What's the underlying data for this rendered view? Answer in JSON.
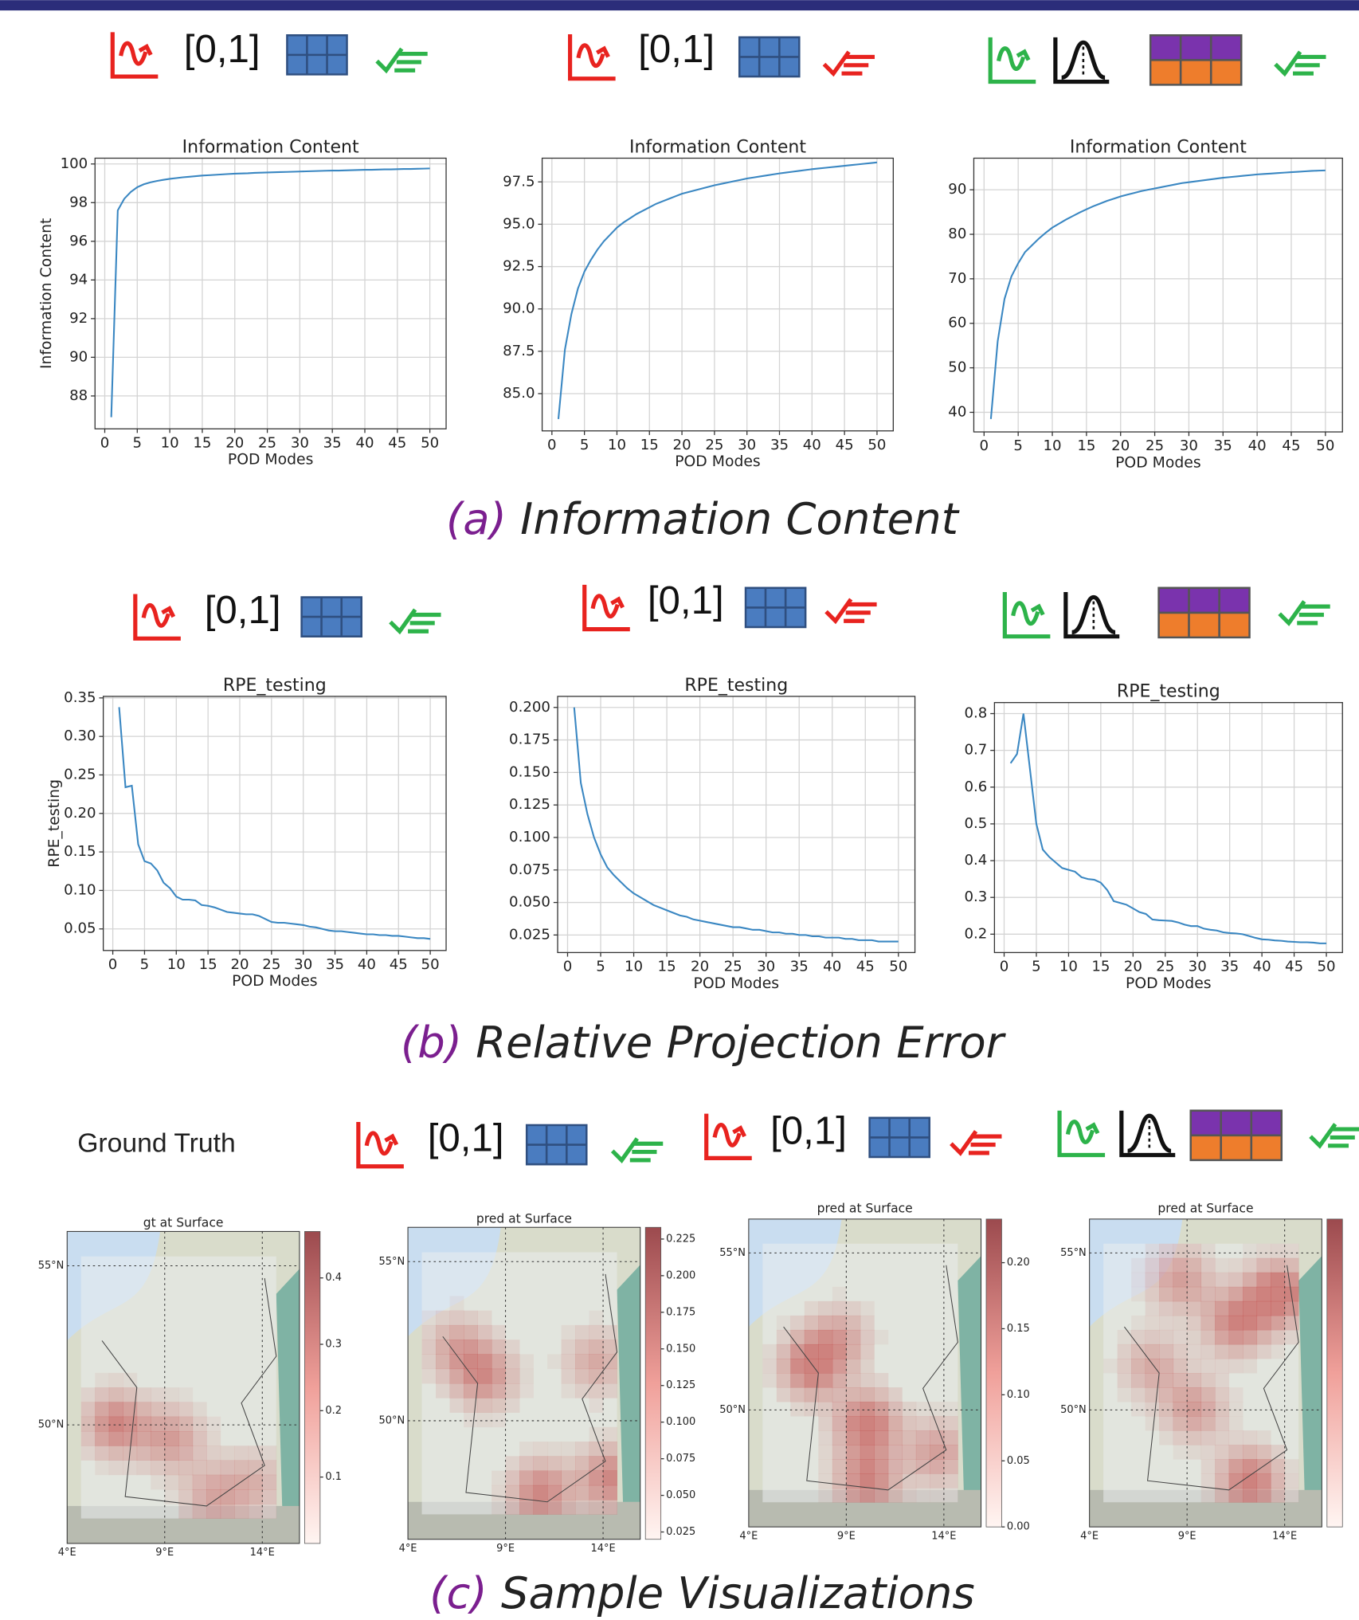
{
  "icon_labels": [
    "[0,1]",
    "[0,1]",
    "[0,1]",
    "[0,1]",
    "[0,1]",
    "[0,1]"
  ],
  "captions": [
    {
      "label": "(a)",
      "text": "Information Content"
    },
    {
      "label": "(b)",
      "text": "Relative Projection Error"
    },
    {
      "label": "(c)",
      "text": "Sample Visualizations"
    }
  ],
  "ground_truth_label": "Ground Truth",
  "chart_data": [
    {
      "type": "line",
      "title": "Information Content",
      "xlabel": "POD Modes",
      "ylabel": "Information Content",
      "grid": true,
      "color": "#3a87c2",
      "x": [
        1,
        2,
        3,
        4,
        5,
        6,
        7,
        8,
        9,
        10,
        11,
        12,
        13,
        14,
        15,
        16,
        17,
        18,
        19,
        20,
        21,
        22,
        23,
        24,
        25,
        26,
        27,
        28,
        29,
        30,
        31,
        32,
        33,
        34,
        35,
        36,
        37,
        38,
        39,
        40,
        41,
        42,
        43,
        44,
        45,
        46,
        47,
        48,
        49,
        50
      ],
      "values": [
        86.9,
        97.6,
        98.2,
        98.55,
        98.8,
        98.95,
        99.05,
        99.12,
        99.18,
        99.23,
        99.27,
        99.31,
        99.34,
        99.37,
        99.4,
        99.42,
        99.44,
        99.46,
        99.48,
        99.5,
        99.51,
        99.52,
        99.54,
        99.55,
        99.56,
        99.57,
        99.58,
        99.59,
        99.6,
        99.61,
        99.62,
        99.63,
        99.64,
        99.65,
        99.66,
        99.66,
        99.67,
        99.68,
        99.69,
        99.7,
        99.7,
        99.71,
        99.72,
        99.72,
        99.73,
        99.74,
        99.74,
        99.75,
        99.76,
        99.77
      ],
      "xlim": [
        -1.5,
        52.5
      ],
      "xticks": [
        0,
        5,
        10,
        15,
        20,
        25,
        30,
        35,
        40,
        45,
        50
      ],
      "ylim": [
        86.3,
        100.3
      ],
      "yticks": [
        88,
        90,
        92,
        94,
        96,
        98,
        100
      ]
    },
    {
      "type": "line",
      "title": "Information Content",
      "xlabel": "POD Modes",
      "grid": true,
      "color": "#3a87c2",
      "x": [
        1,
        2,
        3,
        4,
        5,
        6,
        7,
        8,
        9,
        10,
        11,
        12,
        13,
        14,
        15,
        16,
        17,
        18,
        19,
        20,
        21,
        22,
        23,
        24,
        25,
        26,
        27,
        28,
        29,
        30,
        31,
        32,
        33,
        34,
        35,
        36,
        37,
        38,
        39,
        40,
        41,
        42,
        43,
        44,
        45,
        46,
        47,
        48,
        49,
        50
      ],
      "values": [
        83.5,
        87.6,
        89.7,
        91.2,
        92.2,
        92.9,
        93.5,
        94.0,
        94.4,
        94.8,
        95.1,
        95.35,
        95.6,
        95.8,
        96.0,
        96.2,
        96.35,
        96.5,
        96.65,
        96.8,
        96.9,
        97.0,
        97.1,
        97.2,
        97.3,
        97.38,
        97.46,
        97.54,
        97.62,
        97.7,
        97.76,
        97.82,
        97.88,
        97.94,
        98.0,
        98.05,
        98.1,
        98.15,
        98.2,
        98.25,
        98.29,
        98.33,
        98.37,
        98.41,
        98.45,
        98.49,
        98.53,
        98.57,
        98.61,
        98.65
      ],
      "xlim": [
        -1.5,
        52.5
      ],
      "xticks": [
        0,
        5,
        10,
        15,
        20,
        25,
        30,
        35,
        40,
        45,
        50
      ],
      "ylim": [
        82.8,
        98.9
      ],
      "yticks": [
        {
          "value": 85,
          "label": "85.0"
        },
        {
          "value": 87.5,
          "label": "87.5"
        },
        {
          "value": 90,
          "label": "90.0"
        },
        {
          "value": 92.5,
          "label": "92.5"
        },
        {
          "value": 95,
          "label": "95.0"
        },
        {
          "value": 97.5,
          "label": "97.5"
        }
      ]
    },
    {
      "type": "line",
      "title": "Information Content",
      "xlabel": "POD Modes",
      "grid": true,
      "color": "#3a87c2",
      "x": [
        1,
        2,
        3,
        4,
        5,
        6,
        7,
        8,
        9,
        10,
        11,
        12,
        13,
        14,
        15,
        16,
        17,
        18,
        19,
        20,
        21,
        22,
        23,
        24,
        25,
        26,
        27,
        28,
        29,
        30,
        31,
        32,
        33,
        34,
        35,
        36,
        37,
        38,
        39,
        40,
        41,
        42,
        43,
        44,
        45,
        46,
        47,
        48,
        49,
        50
      ],
      "values": [
        38.5,
        56,
        65.5,
        70.5,
        73.5,
        76,
        77.5,
        79,
        80.3,
        81.5,
        82.4,
        83.3,
        84.1,
        84.9,
        85.6,
        86.3,
        86.9,
        87.5,
        88.0,
        88.5,
        88.9,
        89.3,
        89.7,
        90.0,
        90.3,
        90.6,
        90.9,
        91.2,
        91.5,
        91.7,
        91.9,
        92.1,
        92.3,
        92.5,
        92.7,
        92.85,
        93.0,
        93.15,
        93.3,
        93.45,
        93.55,
        93.65,
        93.75,
        93.85,
        93.95,
        94.05,
        94.15,
        94.25,
        94.3,
        94.35
      ],
      "xlim": [
        -1.5,
        52.5
      ],
      "xticks": [
        0,
        5,
        10,
        15,
        20,
        25,
        30,
        35,
        40,
        45,
        50
      ],
      "ylim": [
        35.6,
        97.1
      ],
      "yticks": [
        40,
        50,
        60,
        70,
        80,
        90
      ]
    },
    {
      "type": "line",
      "title": "RPE_testing",
      "xlabel": "POD Modes",
      "ylabel": "RPE_testing",
      "grid": true,
      "color": "#3a87c2",
      "x": [
        1,
        2,
        3,
        4,
        5,
        6,
        7,
        8,
        9,
        10,
        11,
        12,
        13,
        14,
        15,
        16,
        17,
        18,
        19,
        20,
        21,
        22,
        23,
        24,
        25,
        26,
        27,
        28,
        29,
        30,
        31,
        32,
        33,
        34,
        35,
        36,
        37,
        38,
        39,
        40,
        41,
        42,
        43,
        44,
        45,
        46,
        47,
        48,
        49,
        50
      ],
      "values": [
        0.338,
        0.234,
        0.236,
        0.16,
        0.138,
        0.135,
        0.126,
        0.11,
        0.103,
        0.092,
        0.088,
        0.088,
        0.087,
        0.081,
        0.08,
        0.078,
        0.075,
        0.072,
        0.071,
        0.07,
        0.069,
        0.069,
        0.067,
        0.063,
        0.059,
        0.058,
        0.058,
        0.057,
        0.056,
        0.055,
        0.053,
        0.052,
        0.05,
        0.048,
        0.047,
        0.047,
        0.046,
        0.045,
        0.044,
        0.043,
        0.043,
        0.042,
        0.042,
        0.041,
        0.041,
        0.04,
        0.039,
        0.038,
        0.038,
        0.037
      ],
      "xlim": [
        -1.5,
        52.5
      ],
      "xticks": [
        0,
        5,
        10,
        15,
        20,
        25,
        30,
        35,
        40,
        45,
        50
      ],
      "ylim": [
        0.022,
        0.352
      ],
      "yticks": [
        0.05,
        {
          "value": 0.1,
          "label": "0.10"
        },
        0.15,
        {
          "value": 0.2,
          "label": "0.20"
        },
        0.25,
        {
          "value": 0.3,
          "label": "0.30"
        },
        0.35
      ]
    },
    {
      "type": "line",
      "title": "RPE_testing",
      "xlabel": "POD Modes",
      "grid": true,
      "color": "#3a87c2",
      "x": [
        1,
        2,
        3,
        4,
        5,
        6,
        7,
        8,
        9,
        10,
        11,
        12,
        13,
        14,
        15,
        16,
        17,
        18,
        19,
        20,
        21,
        22,
        23,
        24,
        25,
        26,
        27,
        28,
        29,
        30,
        31,
        32,
        33,
        34,
        35,
        36,
        37,
        38,
        39,
        40,
        41,
        42,
        43,
        44,
        45,
        46,
        47,
        48,
        49,
        50
      ],
      "values": [
        0.2,
        0.142,
        0.118,
        0.1,
        0.087,
        0.077,
        0.071,
        0.066,
        0.061,
        0.057,
        0.054,
        0.051,
        0.048,
        0.046,
        0.044,
        0.042,
        0.04,
        0.039,
        0.037,
        0.036,
        0.035,
        0.034,
        0.033,
        0.032,
        0.031,
        0.031,
        0.03,
        0.029,
        0.029,
        0.028,
        0.027,
        0.027,
        0.026,
        0.026,
        0.025,
        0.025,
        0.024,
        0.024,
        0.023,
        0.023,
        0.023,
        0.022,
        0.022,
        0.021,
        0.021,
        0.021,
        0.02,
        0.02,
        0.02,
        0.02
      ],
      "xlim": [
        -1.5,
        52.5
      ],
      "xticks": [
        0,
        5,
        10,
        15,
        20,
        25,
        30,
        35,
        40,
        45,
        50
      ],
      "ylim": [
        0.0115,
        0.2085
      ],
      "yticks": [
        0.025,
        {
          "value": 0.05,
          "label": "0.050"
        },
        0.075,
        {
          "value": 0.1,
          "label": "0.100"
        },
        0.125,
        {
          "value": 0.15,
          "label": "0.150"
        },
        0.175,
        {
          "value": 0.2,
          "label": "0.200"
        }
      ]
    },
    {
      "type": "line",
      "title": "RPE_testing",
      "xlabel": "POD Modes",
      "grid": true,
      "color": "#3a87c2",
      "x": [
        1,
        2,
        3,
        4,
        5,
        6,
        7,
        8,
        9,
        10,
        11,
        12,
        13,
        14,
        15,
        16,
        17,
        18,
        19,
        20,
        21,
        22,
        23,
        24,
        25,
        26,
        27,
        28,
        29,
        30,
        31,
        32,
        33,
        34,
        35,
        36,
        37,
        38,
        39,
        40,
        41,
        42,
        43,
        44,
        45,
        46,
        47,
        48,
        49,
        50
      ],
      "values": [
        0.665,
        0.69,
        0.8,
        0.65,
        0.5,
        0.43,
        0.41,
        0.395,
        0.38,
        0.375,
        0.37,
        0.355,
        0.35,
        0.348,
        0.34,
        0.32,
        0.29,
        0.285,
        0.28,
        0.27,
        0.26,
        0.255,
        0.24,
        0.238,
        0.237,
        0.236,
        0.232,
        0.226,
        0.222,
        0.222,
        0.215,
        0.212,
        0.21,
        0.205,
        0.203,
        0.202,
        0.2,
        0.195,
        0.19,
        0.186,
        0.185,
        0.183,
        0.182,
        0.18,
        0.179,
        0.178,
        0.178,
        0.177,
        0.175,
        0.175
      ],
      "xlim": [
        -1.5,
        52.5
      ],
      "xticks": [
        0,
        5,
        10,
        15,
        20,
        25,
        30,
        35,
        40,
        45,
        50
      ],
      "ylim": [
        0.15,
        0.83
      ],
      "yticks": [
        0.2,
        0.3,
        0.4,
        0.5,
        0.6,
        0.7,
        0.8
      ]
    }
  ],
  "maps": [
    {
      "title": "gt at Surface",
      "lat_labels": [
        "55°N",
        "50°N"
      ],
      "lon_labels": [
        "4°E",
        "9°E",
        "14°E"
      ],
      "clim": [
        0,
        0.47
      ],
      "colorbar_ticks": [
        0.1,
        0.2,
        0.3,
        0.4
      ]
    },
    {
      "title": "pred at Surface",
      "lat_labels": [
        "55°N",
        "50°N"
      ],
      "lon_labels": [
        "4°E",
        "9°E",
        "14°E"
      ],
      "clim": [
        0.02,
        0.233
      ],
      "colorbar_ticks": [
        0.025,
        {
          "value": 0.05,
          "label": "0.050"
        },
        0.075,
        {
          "value": 0.1,
          "label": "0.100"
        },
        0.125,
        {
          "value": 0.15,
          "label": "0.150"
        },
        0.175,
        {
          "value": 0.2,
          "label": "0.200"
        },
        0.225
      ]
    },
    {
      "title": "pred at Surface",
      "lat_labels": [
        "55°N",
        "50°N"
      ],
      "lon_labels": [
        "4°E",
        "9°E",
        "14°E"
      ],
      "clim": [
        0,
        0.233
      ],
      "colorbar_ticks": [
        {
          "value": 0,
          "label": "0.00"
        },
        0.05,
        {
          "value": 0.1,
          "label": "0.10"
        },
        0.15,
        {
          "value": 0.2,
          "label": "0.20"
        }
      ]
    },
    {
      "title": "pred at Surface",
      "lat_labels": [
        "55°N",
        "50°N"
      ],
      "lon_labels": [
        "4°E",
        "9°E",
        "14°E"
      ]
    }
  ]
}
